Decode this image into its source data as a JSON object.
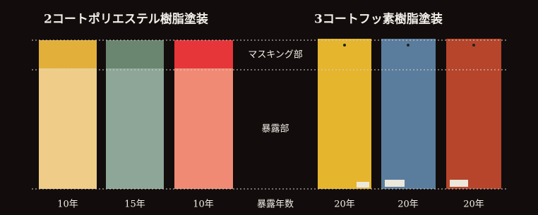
{
  "titles": {
    "left": "2コートポリエステル樹脂塗装",
    "right": "3コートフッ素樹脂塗装"
  },
  "zones": {
    "masking": "マスキング部",
    "exposure": "暴露部",
    "years_label": "暴露年数"
  },
  "panels": [
    {
      "years": "10年"
    },
    {
      "years": "15年"
    },
    {
      "years": "10年"
    },
    {
      "years": "20年"
    },
    {
      "years": "20年"
    },
    {
      "years": "20年"
    }
  ]
}
